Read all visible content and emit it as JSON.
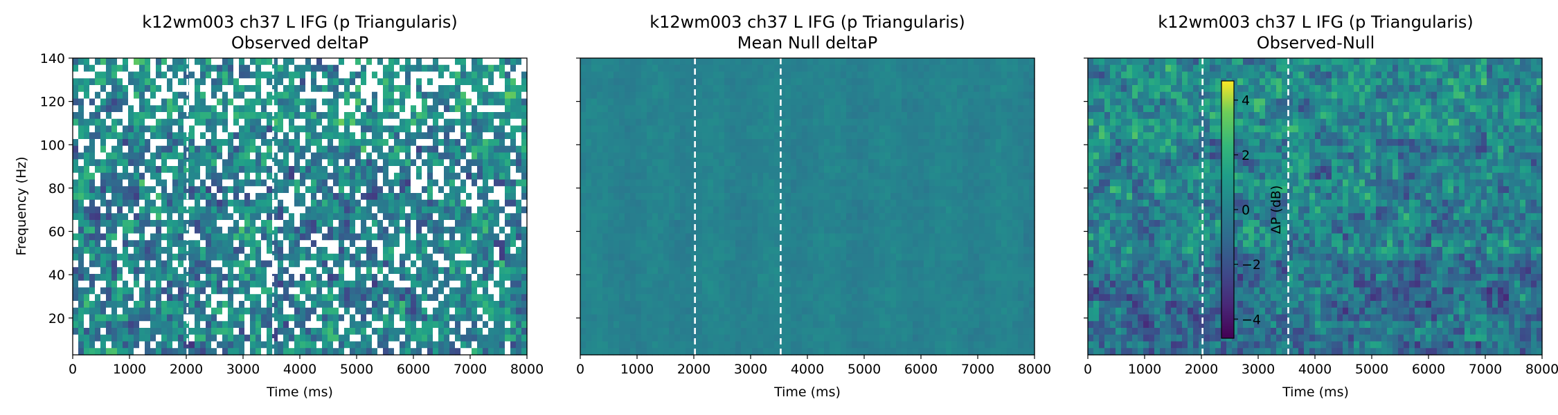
{
  "chart_data": [
    {
      "type": "heatmap",
      "panel": "observed",
      "title_line1": "k12wm003 ch37 L IFG (p Triangularis)",
      "title_line2": "Observed deltaP",
      "xlabel": "Time (ms)",
      "ylabel": "Frequency (Hz)",
      "xlim": [
        0,
        8000
      ],
      "ylim": [
        3,
        140
      ],
      "xticks": [
        0,
        1000,
        2000,
        3000,
        4000,
        5000,
        6000,
        7000,
        8000
      ],
      "yticks": [
        20,
        40,
        60,
        80,
        100,
        120,
        140
      ],
      "event_lines_ms": [
        2020,
        3530
      ],
      "masked_white_cells": true,
      "colormap": "viridis",
      "color_range": [
        -4.7,
        4.7
      ]
    },
    {
      "type": "heatmap",
      "panel": "null",
      "title_line1": "k12wm003 ch37 L IFG (p Triangularis)",
      "title_line2": "Mean Null deltaP",
      "xlabel": "Time (ms)",
      "xlim": [
        0,
        8000
      ],
      "ylim": [
        3,
        140
      ],
      "xticks": [
        0,
        1000,
        2000,
        3000,
        4000,
        5000,
        6000,
        7000,
        8000
      ],
      "event_lines_ms": [
        2020,
        3530
      ],
      "colormap": "viridis",
      "color_range": [
        -4.7,
        4.7
      ]
    },
    {
      "type": "heatmap",
      "panel": "difference",
      "title_line1": "k12wm003 ch37 L IFG (p Triangularis)",
      "title_line2": "Observed-Null",
      "xlabel": "Time (ms)",
      "xlim": [
        0,
        8000
      ],
      "ylim": [
        3,
        140
      ],
      "xticks": [
        0,
        1000,
        2000,
        3000,
        4000,
        5000,
        6000,
        7000,
        8000
      ],
      "event_lines_ms": [
        2020,
        3530
      ],
      "colormap": "viridis",
      "color_range": [
        -4.7,
        4.7
      ],
      "colorbar": {
        "label": "ΔP (dB)",
        "ticks": [
          4,
          2,
          0,
          -2,
          -4
        ],
        "tick_labels": [
          "4",
          "2",
          "0",
          "−2",
          "−4"
        ]
      }
    }
  ]
}
